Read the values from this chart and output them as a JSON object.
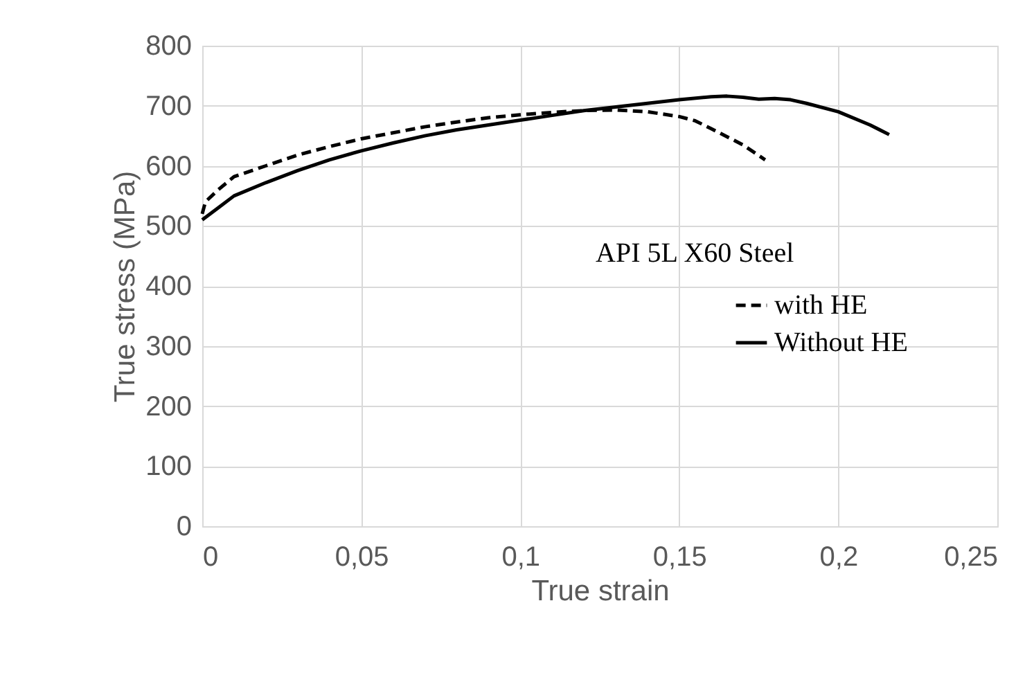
{
  "chart_data": {
    "type": "line",
    "xlabel": "True strain",
    "ylabel": "True stress (MPa)",
    "annotations": [
      "API 5L X60 Steel"
    ],
    "xlim": [
      0,
      0.25
    ],
    "ylim": [
      0,
      800
    ],
    "xticks": [
      0,
      {
        "value": 0.05,
        "label": "0,05"
      },
      {
        "value": 0.1,
        "label": "0,1"
      },
      {
        "value": 0.15,
        "label": "0,15"
      },
      {
        "value": 0.2,
        "label": "0,2"
      },
      {
        "value": 0.25,
        "label": "0,25"
      }
    ],
    "yticks": [
      0,
      100,
      200,
      300,
      400,
      500,
      600,
      700,
      800
    ],
    "grid": true,
    "legend": "right",
    "marker": "none",
    "series": [
      {
        "name": "with HE",
        "color": "#000000",
        "line_style": "dashed",
        "x": [
          0,
          0.001,
          0.005,
          0.01,
          0.02,
          0.03,
          0.04,
          0.05,
          0.06,
          0.07,
          0.08,
          0.09,
          0.1,
          0.11,
          0.12,
          0.13,
          0.14,
          0.15,
          0.155,
          0.16,
          0.17,
          0.177
        ],
        "values": [
          520,
          540,
          560,
          582,
          600,
          618,
          632,
          645,
          655,
          665,
          673,
          680,
          685,
          689,
          692,
          693,
          690,
          682,
          675,
          662,
          635,
          610
        ]
      },
      {
        "name": "Without HE",
        "color": "#000000",
        "line_style": "solid",
        "x": [
          0,
          0.005,
          0.01,
          0.02,
          0.03,
          0.04,
          0.05,
          0.06,
          0.07,
          0.08,
          0.09,
          0.1,
          0.11,
          0.12,
          0.13,
          0.14,
          0.15,
          0.16,
          0.165,
          0.17,
          0.175,
          0.18,
          0.185,
          0.19,
          0.2,
          0.21,
          0.216
        ],
        "values": [
          510,
          530,
          550,
          572,
          592,
          610,
          625,
          638,
          650,
          660,
          668,
          676,
          684,
          692,
          698,
          704,
          710,
          715,
          716,
          714,
          711,
          712,
          710,
          704,
          690,
          668,
          652
        ]
      }
    ]
  }
}
